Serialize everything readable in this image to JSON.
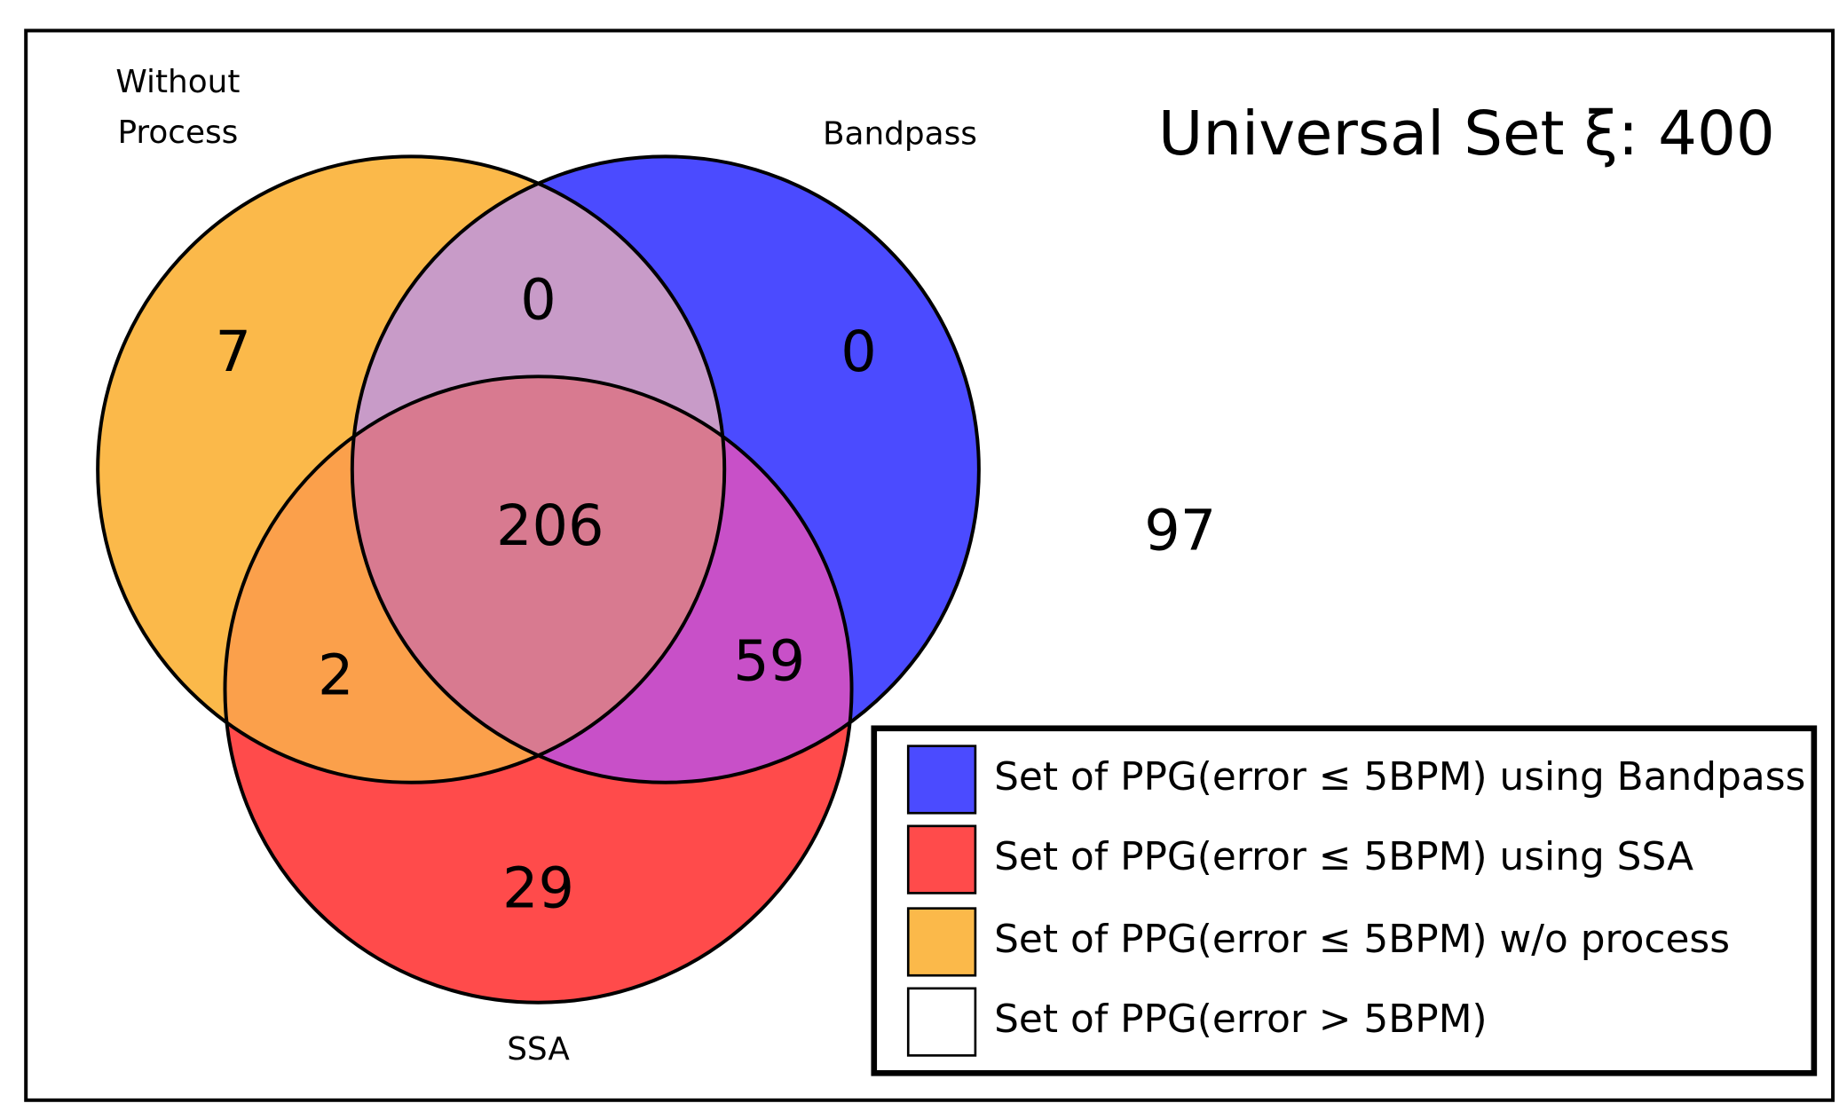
{
  "universal_set": {
    "label": "Universal Set ξ:",
    "value": 400
  },
  "sets": [
    {
      "label_lines": [
        "Without",
        "Process"
      ]
    },
    {
      "label_lines": [
        "Bandpass"
      ]
    },
    {
      "label_lines": [
        "SSA"
      ]
    }
  ],
  "regions": {
    "without_process_only": 7,
    "without_process_and_bandpass": 0,
    "bandpass_only": 0,
    "all_three": 206,
    "without_process_and_ssa": 2,
    "bandpass_and_ssa": 59,
    "ssa_only": 29,
    "outside": 97
  },
  "legend": [
    {
      "label": "Set of PPG(error ≤ 5BPM) using Bandpass",
      "color": "#4b4bff"
    },
    {
      "label": "Set of PPG(error ≤ 5BPM) using SSA",
      "color": "#ff4b4b"
    },
    {
      "label": "Set of PPG(error ≤ 5BPM) w/o process",
      "color": "#fbb94a"
    },
    {
      "label": "Set of PPG(error > 5BPM)",
      "color": "#ffffff"
    }
  ]
}
